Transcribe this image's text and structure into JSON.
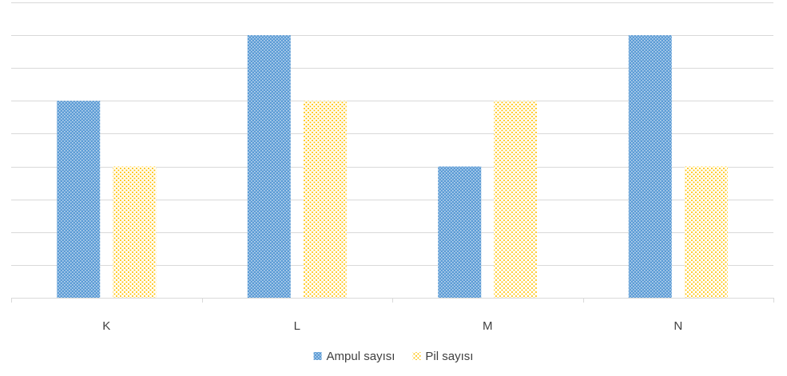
{
  "chart_data": {
    "type": "bar",
    "categories": [
      "K",
      "L",
      "M",
      "N"
    ],
    "series": [
      {
        "name": "Ampul sayısı",
        "values": [
          6,
          8,
          4,
          8
        ],
        "color": "#5b9bd5"
      },
      {
        "name": "Pil sayısı",
        "values": [
          4,
          6,
          6,
          4
        ],
        "color": "#ffc000"
      }
    ],
    "ylim": [
      0,
      9
    ],
    "grid": true,
    "legend_position": "bottom",
    "title": "",
    "xlabel": "",
    "ylabel": ""
  }
}
